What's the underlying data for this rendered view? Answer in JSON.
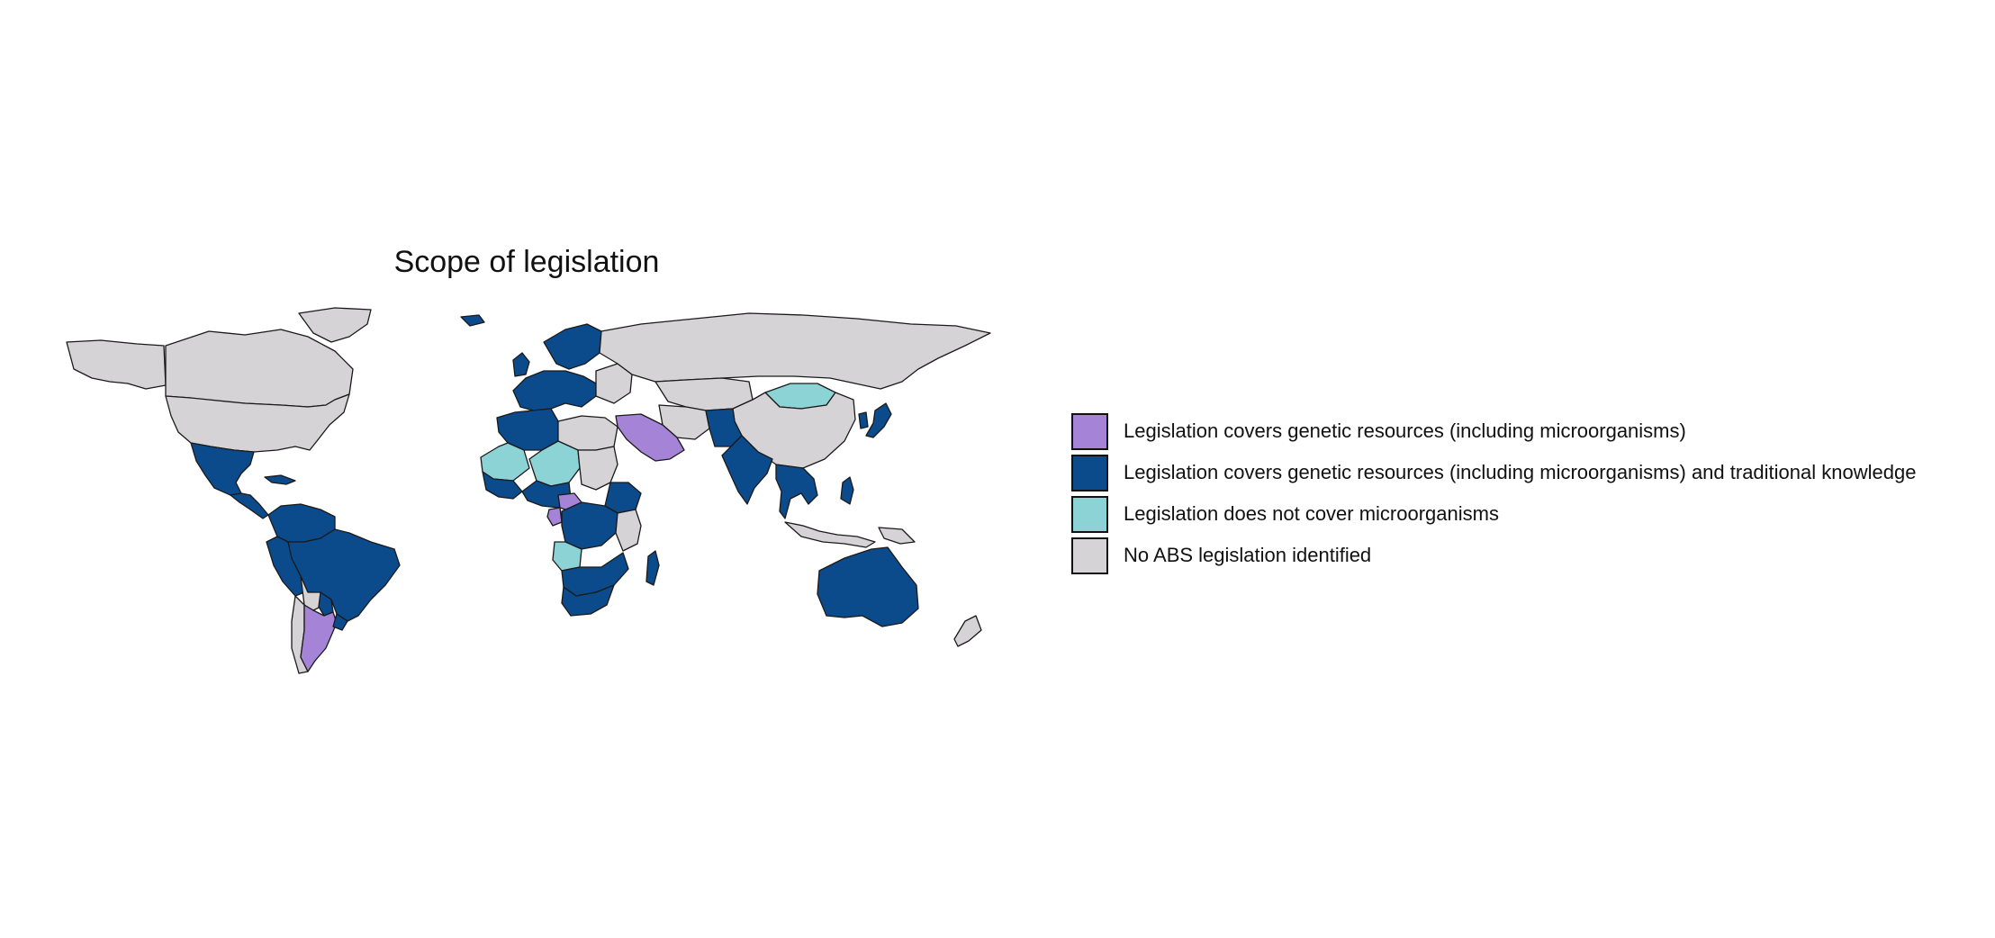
{
  "title": "Scope of legislation",
  "colors": {
    "micro": "#a583d6",
    "micro_tk": "#0b4a8b",
    "no_micro": "#8cd3d6",
    "none": "#d6d3d6"
  },
  "legend": [
    {
      "key": "micro",
      "label": "Legislation covers genetic resources (including microorganisms)",
      "color": "#a583d6"
    },
    {
      "key": "micro_tk",
      "label": "Legislation covers genetic resources (including microorganisms) and traditional knowledge",
      "color": "#0b4a8b"
    },
    {
      "key": "no_micro",
      "label": "Legislation does not cover microorganisms",
      "color": "#8cd3d6"
    },
    {
      "key": "none",
      "label": "No ABS legislation identified",
      "color": "#d6d3d6"
    }
  ],
  "regions": [
    {
      "name": "canada",
      "category": "none"
    },
    {
      "name": "alaska",
      "category": "none"
    },
    {
      "name": "greenland",
      "category": "none"
    },
    {
      "name": "usa",
      "category": "none"
    },
    {
      "name": "mexico",
      "category": "micro_tk"
    },
    {
      "name": "central-america",
      "category": "micro_tk"
    },
    {
      "name": "cuba",
      "category": "micro_tk"
    },
    {
      "name": "colombia-venezuela",
      "category": "micro_tk"
    },
    {
      "name": "ecuador-peru",
      "category": "micro_tk"
    },
    {
      "name": "brazil",
      "category": "micro_tk"
    },
    {
      "name": "bolivia",
      "category": "none"
    },
    {
      "name": "paraguay",
      "category": "micro_tk"
    },
    {
      "name": "argentina",
      "category": "micro"
    },
    {
      "name": "chile",
      "category": "none"
    },
    {
      "name": "uruguay",
      "category": "micro_tk"
    },
    {
      "name": "russia",
      "category": "none"
    },
    {
      "name": "scandinavia",
      "category": "micro_tk"
    },
    {
      "name": "western-europe",
      "category": "micro_tk"
    },
    {
      "name": "eastern-europe",
      "category": "none"
    },
    {
      "name": "iceland",
      "category": "micro_tk"
    },
    {
      "name": "uk",
      "category": "micro_tk"
    },
    {
      "name": "kazakhstan",
      "category": "none"
    },
    {
      "name": "mongolia",
      "category": "no_micro"
    },
    {
      "name": "china",
      "category": "none"
    },
    {
      "name": "india",
      "category": "micro_tk"
    },
    {
      "name": "pakistan-afghanistan",
      "category": "micro_tk"
    },
    {
      "name": "iran",
      "category": "none"
    },
    {
      "name": "saudi-arabia",
      "category": "micro"
    },
    {
      "name": "southeast-asia",
      "category": "micro_tk"
    },
    {
      "name": "japan",
      "category": "micro_tk"
    },
    {
      "name": "korea",
      "category": "micro_tk"
    },
    {
      "name": "philippines",
      "category": "micro_tk"
    },
    {
      "name": "indonesia",
      "category": "none"
    },
    {
      "name": "png",
      "category": "none"
    },
    {
      "name": "australia",
      "category": "micro_tk"
    },
    {
      "name": "new-zealand",
      "category": "none"
    },
    {
      "name": "morocco-algeria",
      "category": "micro_tk"
    },
    {
      "name": "libya-egypt",
      "category": "none"
    },
    {
      "name": "mauritania-mali",
      "category": "no_micro"
    },
    {
      "name": "niger-chad",
      "category": "no_micro"
    },
    {
      "name": "sudan",
      "category": "none"
    },
    {
      "name": "west-africa-coast",
      "category": "micro_tk"
    },
    {
      "name": "nigeria-cameroon",
      "category": "micro_tk"
    },
    {
      "name": "ethiopia",
      "category": "micro_tk"
    },
    {
      "name": "central-africa",
      "category": "micro_tk"
    },
    {
      "name": "east-africa",
      "category": "none"
    },
    {
      "name": "angola",
      "category": "no_micro"
    },
    {
      "name": "southern-africa",
      "category": "micro_tk"
    },
    {
      "name": "south-africa",
      "category": "micro_tk"
    },
    {
      "name": "madagascar",
      "category": "micro_tk"
    },
    {
      "name": "gabon",
      "category": "micro"
    },
    {
      "name": "cameroon-east",
      "category": "micro"
    }
  ]
}
